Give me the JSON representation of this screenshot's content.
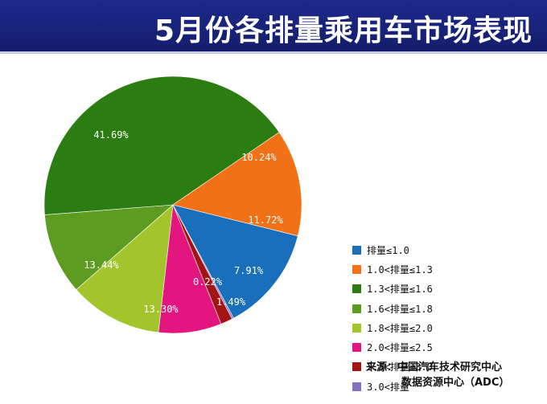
{
  "title": "5月份各排量乘用车市场表现",
  "source": {
    "line1": "来源：中国汽车技术研究中心",
    "line2": "数据资源中心（ADC）"
  },
  "chart_data": {
    "type": "pie",
    "labels": [
      "排量≤1.0",
      "1.0<排量≤1.3",
      "1.3<排量≤1.6",
      "1.6<排量≤1.8",
      "1.8<排量≤2.0",
      "2.0<排量≤2.5",
      "2.5<排量≤3.0",
      "3.0<排量"
    ],
    "values": [
      13.3,
      13.44,
      41.69,
      10.24,
      11.72,
      7.91,
      1.49,
      0.22
    ],
    "data_labels": [
      "13.30%",
      "13.44%",
      "41.69%",
      "10.24%",
      "11.72%",
      "7.91%",
      "1.49%",
      "0.22%"
    ],
    "colors": [
      "#1a6fbd",
      "#f27016",
      "#2b7d12",
      "#5e9b21",
      "#a3c42a",
      "#e2167e",
      "#a31414",
      "#8371c0"
    ],
    "label_colors": [
      "#ffffff",
      "#ffffff",
      "#ffffff",
      "#ffffff",
      "#ffffff",
      "#ffffff",
      "#ffffff",
      "#ffffff"
    ],
    "legend_position": "right"
  }
}
